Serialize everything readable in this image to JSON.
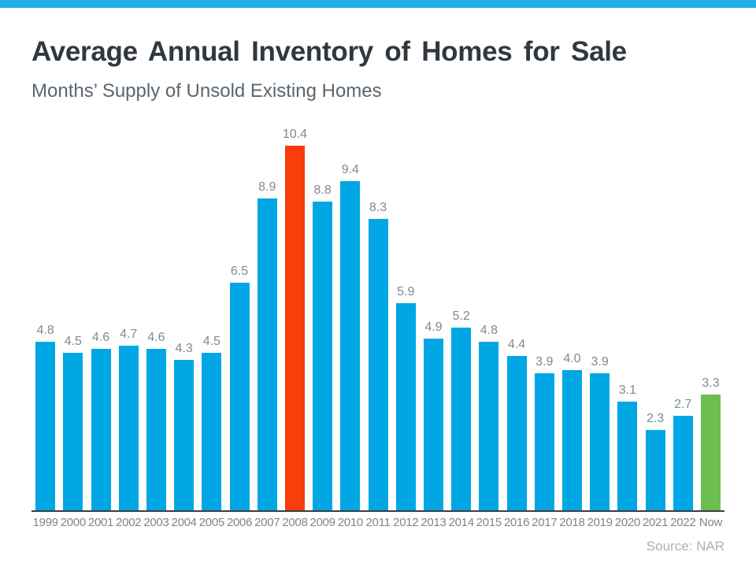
{
  "page": {
    "title": "Average Annual Inventory of Homes for Sale",
    "subtitle": "Months’ Supply of Unsold Existing Homes",
    "source": "Source: NAR"
  },
  "colors": {
    "top_accent_bar": "#1FAEEA",
    "bar_default": "#00A7E4",
    "bar_highlight_2008": "#F93D0B",
    "bar_highlight_now": "#6CBE4E",
    "title_text": "#2F3841",
    "subtitle_text": "#5B656E",
    "value_label_text": "#7E8993",
    "axis_label_text": "#7B868F",
    "source_text": "#A9B1B8",
    "baseline": "#3A3F44"
  },
  "chart_data": {
    "type": "bar",
    "title": "Average Annual Inventory of Homes for Sale",
    "subtitle": "Months’ Supply of Unsold Existing Homes",
    "categories": [
      "1999",
      "2000",
      "2001",
      "2002",
      "2003",
      "2004",
      "2005",
      "2006",
      "2007",
      "2008",
      "2009",
      "2010",
      "2011",
      "2012",
      "2013",
      "2014",
      "2015",
      "2016",
      "2017",
      "2018",
      "2019",
      "2020",
      "2021",
      "2022",
      "Now"
    ],
    "values": [
      4.8,
      4.5,
      4.6,
      4.7,
      4.6,
      4.3,
      4.5,
      6.5,
      8.9,
      10.4,
      8.8,
      9.4,
      8.3,
      5.9,
      4.9,
      5.2,
      4.8,
      4.4,
      3.9,
      4.0,
      3.9,
      3.1,
      2.3,
      2.7,
      3.3
    ],
    "value_labels": [
      "4.8",
      "4.5",
      "4.6",
      "4.7",
      "4.6",
      "4.3",
      "4.5",
      "6.5",
      "8.9",
      "10.4",
      "8.8",
      "9.4",
      "8.3",
      "5.9",
      "4.9",
      "5.2",
      "4.8",
      "4.4",
      "3.9",
      "4.0",
      "3.9",
      "3.1",
      "2.3",
      "2.7",
      "3.3"
    ],
    "bar_colors": [
      "#00A7E4",
      "#00A7E4",
      "#00A7E4",
      "#00A7E4",
      "#00A7E4",
      "#00A7E4",
      "#00A7E4",
      "#00A7E4",
      "#00A7E4",
      "#F93D0B",
      "#00A7E4",
      "#00A7E4",
      "#00A7E4",
      "#00A7E4",
      "#00A7E4",
      "#00A7E4",
      "#00A7E4",
      "#00A7E4",
      "#00A7E4",
      "#00A7E4",
      "#00A7E4",
      "#00A7E4",
      "#00A7E4",
      "#00A7E4",
      "#6CBE4E"
    ],
    "xlabel": "",
    "ylabel": "",
    "ylim": [
      0,
      10.4
    ],
    "grid": false,
    "legend": false,
    "data_labels": true,
    "source": "Source: NAR"
  }
}
